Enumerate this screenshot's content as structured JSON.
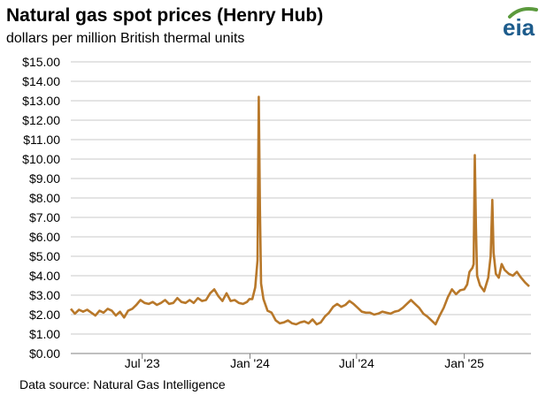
{
  "title": "Natural gas spot prices (Henry Hub)",
  "subtitle": "dollars per million British thermal units",
  "source": "Data source: Natural Gas Intelligence",
  "logo": {
    "text": "eia",
    "icon": "eia-logo-icon"
  },
  "colors": {
    "line": "#B8782A",
    "grid": "#C8C8C8",
    "axis": "#7F7F7F",
    "logo_green": "#5B9A3D",
    "logo_blue": "#1D5C8C"
  },
  "chart_data": {
    "type": "line",
    "title": "Natural gas spot prices (Henry Hub)",
    "ylabel": "dollars per million British thermal units",
    "ylim": [
      0,
      15
    ],
    "grid": true,
    "yticks": [
      "$0.00",
      "$1.00",
      "$2.00",
      "$3.00",
      "$4.00",
      "$5.00",
      "$6.00",
      "$7.00",
      "$8.00",
      "$9.00",
      "$10.00",
      "$11.00",
      "$12.00",
      "$13.00",
      "$14.00",
      "$15.00"
    ],
    "xticks": [
      {
        "date": "2023-07-01",
        "label": "Jul '23"
      },
      {
        "date": "2024-01-01",
        "label": "Jan '24"
      },
      {
        "date": "2024-07-01",
        "label": "Jul '24"
      },
      {
        "date": "2025-01-01",
        "label": "Jan '25"
      }
    ],
    "xrange": [
      "2023-03-01",
      "2025-04-25"
    ],
    "series": [
      {
        "points": [
          [
            "2023-03-01",
            2.3
          ],
          [
            "2023-03-08",
            2.05
          ],
          [
            "2023-03-15",
            2.25
          ],
          [
            "2023-03-22",
            2.15
          ],
          [
            "2023-03-29",
            2.25
          ],
          [
            "2023-04-05",
            2.1
          ],
          [
            "2023-04-12",
            1.95
          ],
          [
            "2023-04-19",
            2.2
          ],
          [
            "2023-04-26",
            2.1
          ],
          [
            "2023-05-03",
            2.3
          ],
          [
            "2023-05-10",
            2.2
          ],
          [
            "2023-05-17",
            1.95
          ],
          [
            "2023-05-24",
            2.15
          ],
          [
            "2023-05-31",
            1.85
          ],
          [
            "2023-06-07",
            2.2
          ],
          [
            "2023-06-14",
            2.3
          ],
          [
            "2023-06-21",
            2.5
          ],
          [
            "2023-06-28",
            2.75
          ],
          [
            "2023-07-05",
            2.6
          ],
          [
            "2023-07-12",
            2.55
          ],
          [
            "2023-07-19",
            2.65
          ],
          [
            "2023-07-26",
            2.5
          ],
          [
            "2023-08-02",
            2.6
          ],
          [
            "2023-08-09",
            2.75
          ],
          [
            "2023-08-16",
            2.55
          ],
          [
            "2023-08-23",
            2.6
          ],
          [
            "2023-08-30",
            2.85
          ],
          [
            "2023-09-06",
            2.65
          ],
          [
            "2023-09-13",
            2.6
          ],
          [
            "2023-09-20",
            2.75
          ],
          [
            "2023-09-27",
            2.6
          ],
          [
            "2023-10-04",
            2.85
          ],
          [
            "2023-10-11",
            2.7
          ],
          [
            "2023-10-18",
            2.75
          ],
          [
            "2023-10-25",
            3.1
          ],
          [
            "2023-11-01",
            3.3
          ],
          [
            "2023-11-08",
            2.95
          ],
          [
            "2023-11-15",
            2.7
          ],
          [
            "2023-11-22",
            3.1
          ],
          [
            "2023-11-29",
            2.7
          ],
          [
            "2023-12-06",
            2.75
          ],
          [
            "2023-12-13",
            2.6
          ],
          [
            "2023-12-20",
            2.55
          ],
          [
            "2023-12-27",
            2.65
          ],
          [
            "2023-12-31",
            2.8
          ],
          [
            "2024-01-05",
            2.8
          ],
          [
            "2024-01-10",
            3.4
          ],
          [
            "2024-01-14",
            4.8
          ],
          [
            "2024-01-16",
            13.2
          ],
          [
            "2024-01-18",
            7.5
          ],
          [
            "2024-01-20",
            3.6
          ],
          [
            "2024-01-24",
            2.8
          ],
          [
            "2024-01-31",
            2.2
          ],
          [
            "2024-02-07",
            2.1
          ],
          [
            "2024-02-14",
            1.7
          ],
          [
            "2024-02-21",
            1.55
          ],
          [
            "2024-02-28",
            1.6
          ],
          [
            "2024-03-06",
            1.7
          ],
          [
            "2024-03-13",
            1.55
          ],
          [
            "2024-03-20",
            1.5
          ],
          [
            "2024-03-27",
            1.6
          ],
          [
            "2024-04-03",
            1.65
          ],
          [
            "2024-04-10",
            1.55
          ],
          [
            "2024-04-17",
            1.75
          ],
          [
            "2024-04-24",
            1.5
          ],
          [
            "2024-05-01",
            1.6
          ],
          [
            "2024-05-08",
            1.9
          ],
          [
            "2024-05-15",
            2.1
          ],
          [
            "2024-05-22",
            2.4
          ],
          [
            "2024-05-29",
            2.55
          ],
          [
            "2024-06-05",
            2.4
          ],
          [
            "2024-06-12",
            2.5
          ],
          [
            "2024-06-19",
            2.7
          ],
          [
            "2024-06-26",
            2.55
          ],
          [
            "2024-07-03",
            2.35
          ],
          [
            "2024-07-10",
            2.15
          ],
          [
            "2024-07-17",
            2.1
          ],
          [
            "2024-07-24",
            2.1
          ],
          [
            "2024-07-31",
            2.0
          ],
          [
            "2024-08-07",
            2.05
          ],
          [
            "2024-08-14",
            2.15
          ],
          [
            "2024-08-21",
            2.1
          ],
          [
            "2024-08-28",
            2.05
          ],
          [
            "2024-09-04",
            2.15
          ],
          [
            "2024-09-11",
            2.2
          ],
          [
            "2024-09-18",
            2.35
          ],
          [
            "2024-09-25",
            2.55
          ],
          [
            "2024-10-02",
            2.75
          ],
          [
            "2024-10-09",
            2.55
          ],
          [
            "2024-10-16",
            2.35
          ],
          [
            "2024-10-23",
            2.05
          ],
          [
            "2024-10-30",
            1.9
          ],
          [
            "2024-11-06",
            1.7
          ],
          [
            "2024-11-13",
            1.5
          ],
          [
            "2024-11-20",
            1.95
          ],
          [
            "2024-11-27",
            2.35
          ],
          [
            "2024-12-04",
            2.9
          ],
          [
            "2024-12-11",
            3.3
          ],
          [
            "2024-12-18",
            3.05
          ],
          [
            "2024-12-25",
            3.25
          ],
          [
            "2025-01-01",
            3.3
          ],
          [
            "2025-01-06",
            3.55
          ],
          [
            "2025-01-10",
            4.2
          ],
          [
            "2025-01-15",
            4.4
          ],
          [
            "2025-01-17",
            4.6
          ],
          [
            "2025-01-19",
            10.2
          ],
          [
            "2025-01-21",
            6.5
          ],
          [
            "2025-01-23",
            4.0
          ],
          [
            "2025-01-28",
            3.5
          ],
          [
            "2025-02-04",
            3.2
          ],
          [
            "2025-02-11",
            3.9
          ],
          [
            "2025-02-15",
            5.0
          ],
          [
            "2025-02-18",
            7.9
          ],
          [
            "2025-02-20",
            5.2
          ],
          [
            "2025-02-24",
            4.1
          ],
          [
            "2025-03-01",
            3.9
          ],
          [
            "2025-03-06",
            4.6
          ],
          [
            "2025-03-11",
            4.3
          ],
          [
            "2025-03-18",
            4.1
          ],
          [
            "2025-03-25",
            4.0
          ],
          [
            "2025-04-01",
            4.2
          ],
          [
            "2025-04-08",
            3.9
          ],
          [
            "2025-04-15",
            3.65
          ],
          [
            "2025-04-22",
            3.45
          ]
        ]
      }
    ]
  }
}
